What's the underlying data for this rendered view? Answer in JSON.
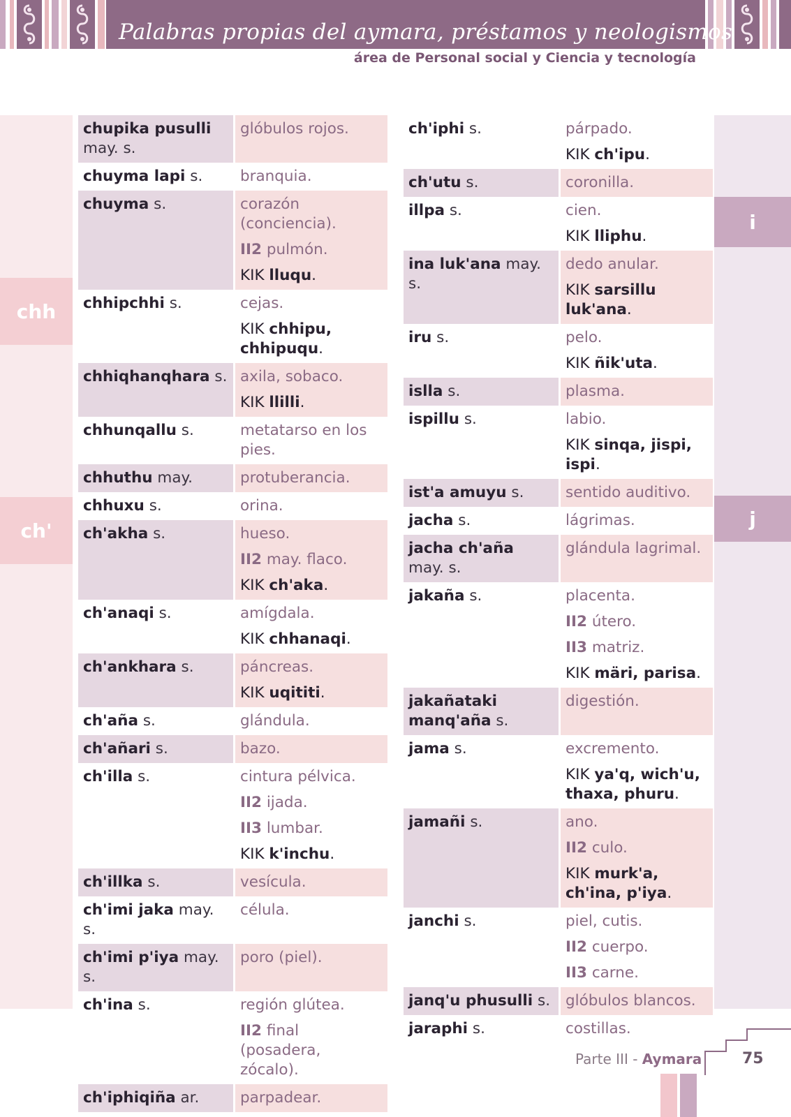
{
  "header": {
    "title": "Palabras propias del aymara, préstamos y neologismos",
    "subtitle": "área de Personal social y Ciencia y tecnología"
  },
  "colors": {
    "title_bar": "#8e6a86",
    "term_highlight": "#e5d7e1",
    "def_highlight": "#f6dfdf",
    "left_tab": "#f4cfd3",
    "right_tab": "#c9a9c0"
  },
  "left_tabs": [
    "chh",
    "ch'"
  ],
  "right_tabs": [
    "i",
    "j"
  ],
  "left_column": [
    {
      "term": "chupika pusulli",
      "gram": "may. s.",
      "lines": [
        {
          "t": "plain",
          "text": "glóbulos rojos."
        }
      ],
      "hl": true
    },
    {
      "term": "chuyma lapi",
      "gram": "s.",
      "lines": [
        {
          "t": "plain",
          "text": "branquia."
        }
      ],
      "hl": false
    },
    {
      "term": "chuyma",
      "gram": "s.",
      "lines": [
        {
          "t": "plain",
          "text": "corazón (conciencia)."
        },
        {
          "t": "num",
          "n": "II2",
          "text": "pulmón."
        },
        {
          "t": "kik",
          "words": "lluqu"
        }
      ],
      "hl": true
    },
    {
      "term": "chhipchhi",
      "gram": "s.",
      "lines": [
        {
          "t": "plain",
          "text": "cejas."
        },
        {
          "t": "kik",
          "words": "chhipu, chhipuqu"
        }
      ],
      "hl": false
    },
    {
      "term": "chhiqhanqhara",
      "gram": "s.",
      "lines": [
        {
          "t": "plain",
          "text": "axila, sobaco."
        },
        {
          "t": "kik",
          "words": "llilli"
        }
      ],
      "hl": true
    },
    {
      "term": "chhunqallu",
      "gram": "s.",
      "lines": [
        {
          "t": "plain",
          "text": "metatarso en los pies."
        }
      ],
      "hl": false
    },
    {
      "term": "chhuthu",
      "gram": "may.",
      "lines": [
        {
          "t": "plain",
          "text": "protuberancia."
        }
      ],
      "hl": true
    },
    {
      "term": "chhuxu",
      "gram": "s.",
      "lines": [
        {
          "t": "plain",
          "text": "orina."
        }
      ],
      "hl": false
    },
    {
      "term": "ch'akha",
      "gram": "s.",
      "lines": [
        {
          "t": "plain",
          "text": "hueso."
        },
        {
          "t": "num",
          "n": "II2",
          "text": "may. flaco."
        },
        {
          "t": "kik",
          "words": "ch'aka"
        }
      ],
      "hl": true
    },
    {
      "term": "ch'anaqi",
      "gram": "s.",
      "lines": [
        {
          "t": "plain",
          "text": "amígdala."
        },
        {
          "t": "kik",
          "words": "chhanaqi"
        }
      ],
      "hl": false
    },
    {
      "term": "ch'ankhara",
      "gram": "s.",
      "lines": [
        {
          "t": "plain",
          "text": "páncreas."
        },
        {
          "t": "kik",
          "words": "uqititi"
        }
      ],
      "hl": true
    },
    {
      "term": "ch'aña",
      "gram": "s.",
      "lines": [
        {
          "t": "plain",
          "text": "glándula."
        }
      ],
      "hl": false
    },
    {
      "term": "ch'añari",
      "gram": "s.",
      "lines": [
        {
          "t": "plain",
          "text": "bazo."
        }
      ],
      "hl": true
    },
    {
      "term": "ch'illa",
      "gram": "s.",
      "lines": [
        {
          "t": "plain",
          "text": "cintura pélvica."
        },
        {
          "t": "num",
          "n": "II2",
          "text": "ijada."
        },
        {
          "t": "num",
          "n": "II3",
          "text": "lumbar."
        },
        {
          "t": "kik",
          "words": "k'inchu"
        }
      ],
      "hl": false
    },
    {
      "term": "ch'illka",
      "gram": "s.",
      "lines": [
        {
          "t": "plain",
          "text": "vesícula."
        }
      ],
      "hl": true
    },
    {
      "term": "ch'imi jaka",
      "gram": "may. s.",
      "lines": [
        {
          "t": "plain",
          "text": "célula."
        }
      ],
      "hl": false
    },
    {
      "term": "ch'imi p'iya",
      "gram": "may. s.",
      "lines": [
        {
          "t": "plain",
          "text": "poro (piel)."
        }
      ],
      "hl": true
    },
    {
      "term": "ch'ina",
      "gram": "s.",
      "lines": [
        {
          "t": "plain",
          "text": "región glútea."
        },
        {
          "t": "num",
          "n": "II2",
          "text": "final (posadera, zócalo)."
        }
      ],
      "hl": false
    },
    {
      "term": "ch'iphiqiña",
      "gram": "ar.",
      "lines": [
        {
          "t": "plain",
          "text": "parpadear."
        }
      ],
      "hl": true
    }
  ],
  "right_column": [
    {
      "term": "ch'iphi",
      "gram": "s.",
      "lines": [
        {
          "t": "plain",
          "text": "párpado."
        },
        {
          "t": "kik",
          "words": "ch'ipu"
        }
      ],
      "hl": false
    },
    {
      "term": "ch'utu",
      "gram": "s.",
      "lines": [
        {
          "t": "plain",
          "text": "coronilla."
        }
      ],
      "hl": true
    },
    {
      "term": "illpa",
      "gram": "s.",
      "lines": [
        {
          "t": "plain",
          "text": "cien."
        },
        {
          "t": "kik",
          "words": "lliphu"
        }
      ],
      "hl": false
    },
    {
      "term": "ina luk'ana",
      "gram": "may. s.",
      "lines": [
        {
          "t": "plain",
          "text": "dedo anular."
        },
        {
          "t": "kik",
          "words": "sarsillu luk'ana"
        }
      ],
      "hl": true
    },
    {
      "term": "iru",
      "gram": "s.",
      "lines": [
        {
          "t": "plain",
          "text": "pelo."
        },
        {
          "t": "kik",
          "words": "ñik'uta"
        }
      ],
      "hl": false
    },
    {
      "term": "islla",
      "gram": "s.",
      "lines": [
        {
          "t": "plain",
          "text": "plasma."
        }
      ],
      "hl": true
    },
    {
      "term": "ispillu",
      "gram": "s.",
      "lines": [
        {
          "t": "plain",
          "text": "labio."
        },
        {
          "t": "kik",
          "words": "sinqa, jispi, ispi"
        }
      ],
      "hl": false
    },
    {
      "term": "ist'a amuyu",
      "gram": "s.",
      "lines": [
        {
          "t": "plain",
          "text": "sentido auditivo."
        }
      ],
      "hl": true
    },
    {
      "term": "jacha",
      "gram": "s.",
      "lines": [
        {
          "t": "plain",
          "text": "lágrimas."
        }
      ],
      "hl": false
    },
    {
      "term": "jacha ch'aña",
      "gram": "may. s.",
      "lines": [
        {
          "t": "plain",
          "text": "glándula lagrimal."
        }
      ],
      "hl": true
    },
    {
      "term": "jakaña",
      "gram": "s.",
      "lines": [
        {
          "t": "plain",
          "text": "placenta."
        },
        {
          "t": "num",
          "n": "II2",
          "text": "útero."
        },
        {
          "t": "num",
          "n": "II3",
          "text": "matriz."
        },
        {
          "t": "kik",
          "words": "märi, parisa"
        }
      ],
      "hl": false
    },
    {
      "term": "jakañataki manq'aña",
      "gram": "s.",
      "lines": [
        {
          "t": "plain",
          "text": "digestión."
        }
      ],
      "hl": true
    },
    {
      "term": "jama",
      "gram": "s.",
      "lines": [
        {
          "t": "plain",
          "text": "excremento."
        },
        {
          "t": "kik",
          "words": "ya'q, wich'u, thaxa, phuru"
        }
      ],
      "hl": false
    },
    {
      "term": "jamañi",
      "gram": "s.",
      "lines": [
        {
          "t": "plain",
          "text": "ano."
        },
        {
          "t": "num",
          "n": "II2",
          "text": "culo."
        },
        {
          "t": "kik",
          "words": "murk'a, ch'ina, p'iya"
        }
      ],
      "hl": true
    },
    {
      "term": "janchi",
      "gram": "s.",
      "lines": [
        {
          "t": "plain",
          "text": "piel, cutis."
        },
        {
          "t": "num",
          "n": "II2",
          "text": "cuerpo."
        },
        {
          "t": "num",
          "n": "II3",
          "text": "carne."
        }
      ],
      "hl": false
    },
    {
      "term": "janq'u phusulli",
      "gram": "s.",
      "lines": [
        {
          "t": "plain",
          "text": "glóbulos blancos."
        }
      ],
      "hl": true
    },
    {
      "term": "jaraphi",
      "gram": "s.",
      "lines": [
        {
          "t": "plain",
          "text": "costillas."
        }
      ],
      "hl": false
    }
  ],
  "kik_label": "KIK",
  "footer": {
    "part": "Parte III - ",
    "language": "Aymara",
    "page": "75"
  }
}
